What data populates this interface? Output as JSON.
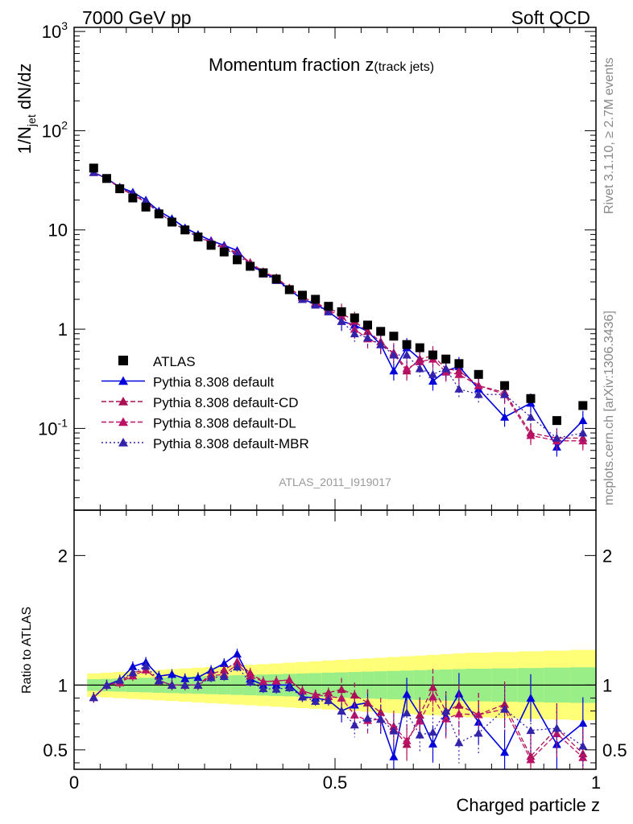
{
  "header": {
    "left": "7000 GeV pp",
    "right": "Soft QCD"
  },
  "side_text": {
    "rivet_label": "Rivet 3.1.10, ≥ 2.7M events",
    "mcplots_label": "mcplots.cern.ch [arXiv:1306.3436]"
  },
  "chart_data": [
    {
      "type": "scatter",
      "title": "Momentum fraction z(track jets)",
      "ylabel": "1/N_jet dN/dz",
      "analysis_tag": "ATLAS_2011_I919017",
      "yscale": "log",
      "xlim": [
        0,
        1
      ],
      "ylim": [
        0.015,
        1100
      ],
      "y_ticks": [
        "10^{-1}",
        "1",
        "10",
        "10^{2}",
        "10^{3}"
      ],
      "legend_position": "lower-left",
      "x": [
        0.0375,
        0.0625,
        0.0875,
        0.1125,
        0.1375,
        0.1625,
        0.1875,
        0.2125,
        0.2375,
        0.2625,
        0.2875,
        0.3125,
        0.3375,
        0.3625,
        0.3875,
        0.4125,
        0.4375,
        0.4625,
        0.4875,
        0.5125,
        0.5375,
        0.5625,
        0.5875,
        0.6125,
        0.6375,
        0.6625,
        0.6875,
        0.7125,
        0.7375,
        0.775,
        0.825,
        0.875,
        0.925,
        0.975
      ],
      "series": [
        {
          "name": "ATLAS",
          "color": "#000000",
          "marker": "square",
          "values": [
            42,
            33,
            26,
            21,
            17,
            14.5,
            12,
            10,
            8.5,
            7,
            6,
            5,
            4.3,
            3.7,
            3.2,
            2.5,
            2.2,
            2.0,
            1.7,
            1.5,
            1.3,
            1.1,
            0.95,
            0.85,
            0.7,
            0.65,
            0.55,
            0.5,
            0.45,
            0.35,
            0.27,
            0.2,
            0.12,
            0.17
          ]
        },
        {
          "name": "Pythia 8.308 default",
          "color": "#0000dd",
          "marker": "triangle",
          "line": "solid",
          "values": [
            38,
            33,
            27,
            24,
            20,
            15.5,
            13,
            10.5,
            9.0,
            7.8,
            7.0,
            6.2,
            4.5,
            3.7,
            3.2,
            2.5,
            2.0,
            1.8,
            1.5,
            1.2,
            1.1,
            0.95,
            0.7,
            0.38,
            0.65,
            0.5,
            0.3,
            0.38,
            0.42,
            0.25,
            0.13,
            0.18,
            0.065,
            0.12
          ]
        },
        {
          "name": "Pythia 8.308 default-CD",
          "color": "#aa1155",
          "marker": "triangle",
          "line": "dashed",
          "values": [
            38,
            33,
            26.5,
            23,
            19,
            15,
            12,
            10,
            8.5,
            7.6,
            6.7,
            5.9,
            4.7,
            3.8,
            3.3,
            2.6,
            2.1,
            1.85,
            1.6,
            1.45,
            1.2,
            0.95,
            0.75,
            0.56,
            0.38,
            0.5,
            0.54,
            0.4,
            0.38,
            0.27,
            0.23,
            0.09,
            0.08,
            0.08
          ]
        },
        {
          "name": "Pythia 8.308 default-DL",
          "color": "#bb1166",
          "marker": "triangle",
          "line": "dashed",
          "values": [
            38,
            33,
            26.5,
            22.5,
            19,
            15,
            12,
            10,
            8.5,
            7.5,
            6.5,
            5.8,
            4.6,
            3.8,
            3.3,
            2.6,
            2.1,
            1.85,
            1.55,
            1.35,
            1.0,
            0.8,
            0.7,
            0.58,
            0.4,
            0.47,
            0.5,
            0.37,
            0.35,
            0.27,
            0.22,
            0.085,
            0.075,
            0.075
          ]
        },
        {
          "name": "Pythia 8.308 default-MBR",
          "color": "#3322aa",
          "marker": "triangle",
          "line": "dotted",
          "values": [
            38,
            33,
            27,
            23,
            19.5,
            15,
            12,
            10,
            8.5,
            7.4,
            6.4,
            5.7,
            4.4,
            3.6,
            3.1,
            2.45,
            2.0,
            1.75,
            1.5,
            1.2,
            0.9,
            0.82,
            0.7,
            0.55,
            0.55,
            0.4,
            0.35,
            0.4,
            0.25,
            0.22,
            0.22,
            0.13,
            0.08,
            0.09
          ]
        }
      ]
    },
    {
      "type": "scatter",
      "xlabel": "Charged particle z",
      "ylabel": "Ratio to ATLAS",
      "xlim": [
        0,
        1
      ],
      "ylim": [
        0.35,
        2.35
      ],
      "x_ticks": [
        "0",
        "0.5",
        "1"
      ],
      "y_ticks": [
        "0.5",
        "1",
        "2"
      ],
      "band_outer_color": "#ffff77",
      "band_inner_color": "#99ee88",
      "reference_line": 1
    }
  ]
}
